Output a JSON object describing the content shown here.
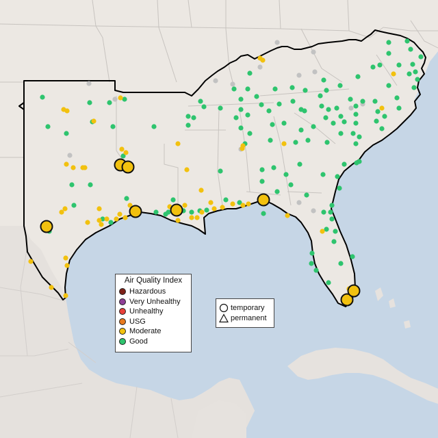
{
  "legend": {
    "title": "Air Quality Index",
    "categories": [
      {
        "label": "Hazardous",
        "color": "#7e2218"
      },
      {
        "label": "Very Unhealthy",
        "color": "#8f3f97"
      },
      {
        "label": "Unhealthy",
        "color": "#e8403a"
      },
      {
        "label": "USG",
        "color": "#e87a1f"
      },
      {
        "label": "Moderate",
        "color": "#f2c10f"
      },
      {
        "label": "Good",
        "color": "#2ec46e"
      }
    ]
  },
  "shape_legend": {
    "temporary": "temporary",
    "permanent": "permanent"
  },
  "colors": {
    "ocean": "#c6d6e6",
    "land": "#ede9e4",
    "land_south": "#e2dedb",
    "state_border": "#c8c4c0",
    "region_outline": "#000000",
    "inactive_station": "#c2c2c2"
  }
}
